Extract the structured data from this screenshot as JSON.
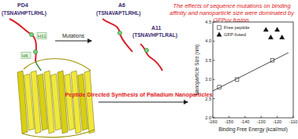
{
  "diagram": {
    "peptides": [
      {
        "name": "PD4",
        "sequence": "(TSNAVHPTLRHL)"
      },
      {
        "name": "A6",
        "sequence": "(TSNAVAPTLRHL)"
      },
      {
        "name": "A11",
        "sequence": "(TSNAVHPTLRAL)"
      }
    ],
    "residue_labels": [
      "H11",
      "H6"
    ],
    "mutation_label": "Mutations",
    "caption": "The effects of sequence mutations on binding affinity and nanoparticle size were dominated by GFPuv fusion.",
    "synthesis_label": "Peptide Directed Synthesis of Palladium Nanoparticles"
  },
  "chart_data": {
    "type": "scatter",
    "x_label": "Binding Free Energy (kcal/mol)",
    "y_label": "Nanoparticle Size (nm)",
    "xlim": [
      -160,
      -110
    ],
    "ylim": [
      2,
      4.5
    ],
    "xticks": [
      -160,
      -150,
      -140,
      -130,
      -120,
      -110
    ],
    "yticks": [
      {
        "value": 2,
        "label": "2.0"
      },
      2.5,
      {
        "value": 3,
        "label": "3.0"
      },
      3.5,
      {
        "value": 4,
        "label": "4.0"
      },
      4.5
    ],
    "legend": "upper left",
    "series": [
      {
        "name": "Free peptide",
        "marker": "square",
        "color": "#555555",
        "x": [
          -156,
          -145,
          -123
        ],
        "values": [
          2.8,
          3.0,
          3.5
        ]
      },
      {
        "name": "GFP-fused",
        "marker": "triangle",
        "color": "#111111",
        "x": [
          -127,
          -120,
          -124,
          -117
        ],
        "values": [
          4.3,
          4.3,
          4.1,
          4.1
        ]
      },
      {
        "type": "line",
        "color": "#333333",
        "x": [
          -160,
          -113
        ],
        "values": [
          2.7,
          3.7
        ]
      }
    ]
  }
}
